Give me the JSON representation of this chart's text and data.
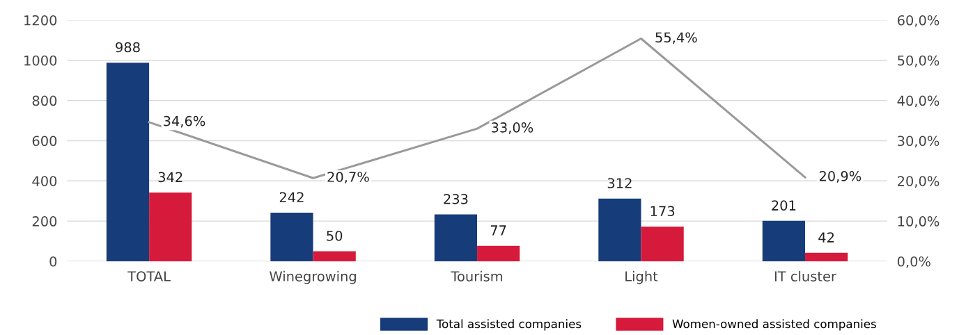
{
  "chart_data": {
    "type": "bar",
    "categories": [
      "TOTAL",
      "Winegrowing",
      "Tourism",
      "Light",
      "IT cluster"
    ],
    "series": [
      {
        "name": "Total assisted companies",
        "color": "#173c7a",
        "values": [
          988,
          242,
          233,
          312,
          201
        ]
      },
      {
        "name": "Women-owned assisted companies",
        "color": "#d61a3c",
        "values": [
          342,
          50,
          77,
          173,
          42
        ]
      },
      {
        "type": "line",
        "axis": "y2",
        "color": "#9a9a9a",
        "values": [
          34.6,
          20.7,
          33.0,
          55.4,
          20.9
        ],
        "value_labels": [
          "34,6%",
          "20,7%",
          "33,0%",
          "55,4%",
          "20,9%"
        ]
      }
    ],
    "ylim": [
      0,
      1200
    ],
    "yticks": [
      0,
      200,
      400,
      600,
      800,
      1000,
      1200
    ],
    "y2lim": [
      0,
      60
    ],
    "y2ticks": [
      {
        "value": 0,
        "label": "0,0%"
      },
      {
        "value": 10,
        "label": "10,0%"
      },
      {
        "value": 20,
        "label": "20,0%"
      },
      {
        "value": 30,
        "label": "30,0%"
      },
      {
        "value": 40,
        "label": "40,0%"
      },
      {
        "value": 50,
        "label": "50,0%"
      },
      {
        "value": 60,
        "label": "60,0%"
      }
    ],
    "grid": "y",
    "legend": "bottom right",
    "data_labels": true,
    "marker": "none",
    "line_style": "solid"
  }
}
